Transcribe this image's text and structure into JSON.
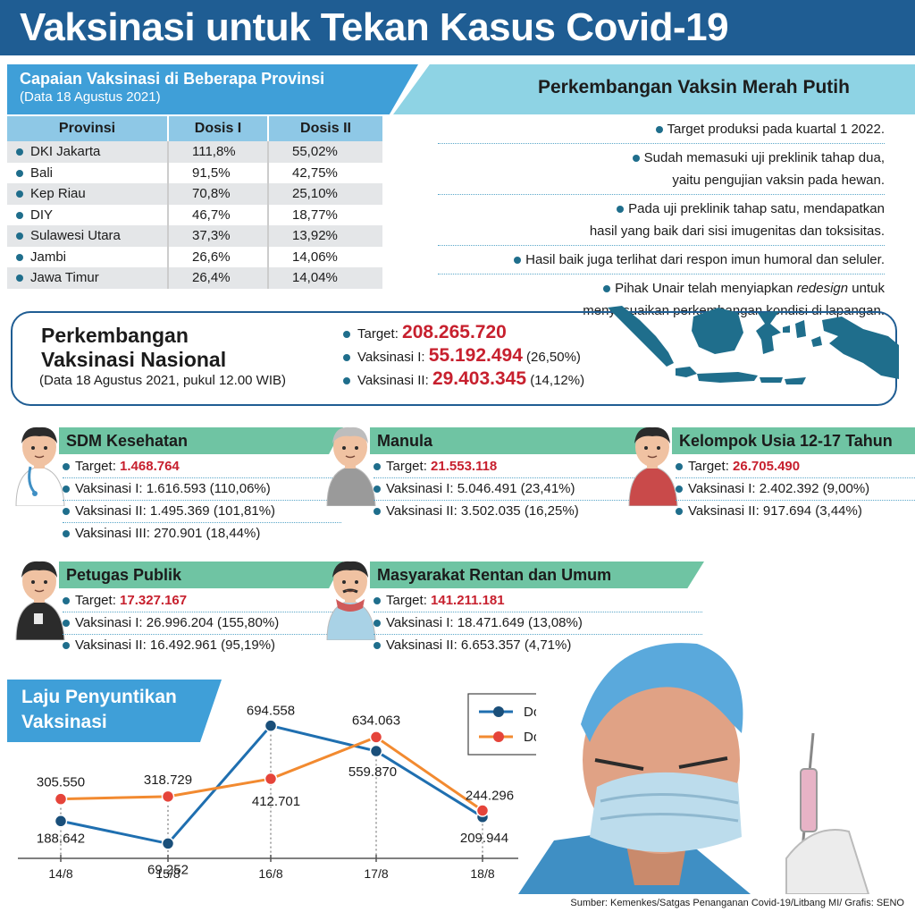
{
  "title": "Vaksinasi untuk Tekan Kasus Covid-19",
  "provinces": {
    "title": "Capaian Vaksinasi di Beberapa Provinsi",
    "subtitle": "(Data 18 Agustus 2021)",
    "headers": [
      "Provinsi",
      "Dosis I",
      "Dosis II"
    ],
    "rows": [
      [
        "DKI Jakarta",
        "111,8%",
        "55,02%"
      ],
      [
        "Bali",
        "91,5%",
        "42,75%"
      ],
      [
        "Kep Riau",
        "70,8%",
        "25,10%"
      ],
      [
        "DIY",
        "46,7%",
        "18,77%"
      ],
      [
        "Sulawesi Utara",
        "37,3%",
        "13,92%"
      ],
      [
        "Jambi",
        "26,6%",
        "14,06%"
      ],
      [
        "Jawa Timur",
        "26,4%",
        "14,04%"
      ]
    ]
  },
  "merah_putih": {
    "title": "Perkembangan Vaksin Merah Putih",
    "items": [
      {
        "lines": [
          "Target produksi pada kuartal 1 2022."
        ]
      },
      {
        "lines": [
          "Sudah memasuki uji preklinik tahap dua,",
          "yaitu pengujian vaksin pada hewan."
        ]
      },
      {
        "lines": [
          "Pada uji preklinik tahap satu, mendapatkan",
          "hasil yang baik dari sisi imugenitas dan toksisitas."
        ]
      },
      {
        "lines": [
          "Hasil baik juga terlihat dari respon imun humoral dan seluler."
        ]
      },
      {
        "lines": [
          "Pihak Unair telah menyiapkan {redesign} untuk",
          "menyesuaikan perkembangan kondisi di lapangan."
        ],
        "italic": "redesign"
      }
    ]
  },
  "nasional": {
    "title_line1": "Perkembangan",
    "title_line2": "Vaksinasi Nasional",
    "subtitle": "(Data 18 Agustus 2021, pukul 12.00 WIB)",
    "target_label": "Target:",
    "target_value": "208.265.720",
    "v1_label": "Vaksinasi I:",
    "v1_value": "55.192.494",
    "v1_pct": "(26,50%)",
    "v2_label": "Vaksinasi II:",
    "v2_value": "29.403.345",
    "v2_pct": "(14,12%)"
  },
  "groups": [
    {
      "name": "SDM Kesehatan",
      "icon": "health-worker-icon",
      "target": "1.468.764",
      "lines": [
        "Vaksinasi I: 1.616.593 (110,06%)",
        "Vaksinasi II: 1.495.369 (101,81%)",
        "Vaksinasi III: 270.901 (18,44%)"
      ]
    },
    {
      "name": "Manula",
      "icon": "elderly-icon",
      "target": "21.553.118",
      "lines": [
        "Vaksinasi I: 5.046.491 (23,41%)",
        "Vaksinasi II: 3.502.035 (16,25%)"
      ]
    },
    {
      "name": "Kelompok Usia 12-17 Tahun",
      "icon": "teenager-icon",
      "target": "26.705.490",
      "lines": [
        "Vaksinasi I: 2.402.392 (9,00%)",
        "Vaksinasi II: 917.694 (3,44%)"
      ]
    },
    {
      "name": "Petugas Publik",
      "icon": "public-officer-icon",
      "target": "17.327.167",
      "lines": [
        "Vaksinasi I: 26.996.204 (155,80%)",
        "Vaksinasi II: 16.492.961 (95,19%)"
      ]
    },
    {
      "name": "Masyarakat Rentan dan Umum",
      "icon": "citizen-icon",
      "target": "141.211.181",
      "lines": [
        "Vaksinasi I: 18.471.649 (13,08%)",
        "Vaksinasi II: 6.653.357 (4,71%)"
      ]
    }
  ],
  "target_label": "Target:",
  "chart_data": {
    "type": "line",
    "title": "Laju Penyuntikan Vaksinasi",
    "title_line1": "Laju Penyuntikan",
    "title_line2": "Vaksinasi",
    "categories": [
      "14/8",
      "15/8",
      "16/8",
      "17/8",
      "18/8"
    ],
    "series": [
      {
        "name": "Dosis I",
        "color": "#1f6fb0",
        "values": [
          188642,
          69252,
          694558,
          559870,
          209944
        ],
        "labels": [
          "188.642",
          "69.252",
          "694.558",
          "559.870",
          "209.944"
        ]
      },
      {
        "name": "Dosis II",
        "color": "#f28a30",
        "values": [
          305550,
          318729,
          412701,
          634063,
          244296
        ],
        "labels": [
          "305.550",
          "318.729",
          "412.701",
          "634.063",
          "244.296"
        ]
      }
    ],
    "ylim": [
      0,
      750000
    ],
    "legend": "top-right",
    "grid": false
  },
  "source": "Sumber: Kemenkes/Satgas Penanganan Covid-19/Litbang MI/ Grafis: SENO",
  "colors": {
    "dark_blue": "#1f5d93",
    "light_blue": "#3f9fd8",
    "teal": "#6fc4a3",
    "red": "#c7202e",
    "map": "#1f6e8c"
  }
}
